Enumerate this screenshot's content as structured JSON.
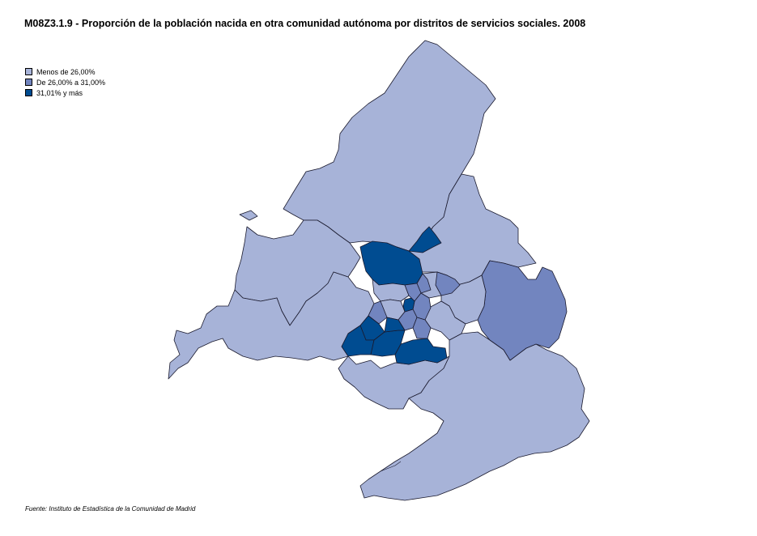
{
  "title": "M08Z3.1.9 - Proporción de la población nacida en otra comunidad autónoma  por distritos de servicios sociales. 2008",
  "legend": [
    {
      "label": "Menos de 26,00%",
      "color": "#a7b3d8"
    },
    {
      "label": "De 26,00%  a 31,00%",
      "color": "#7285bf"
    },
    {
      "label": "31,01% y más",
      "color": "#004c91"
    }
  ],
  "source": "Fuente: Instituto de Estadística de la Comunidad de Madrid",
  "colors": {
    "low": "#a7b3d8",
    "mid": "#7285bf",
    "high": "#004c91",
    "border": "#1a1a2e"
  }
}
